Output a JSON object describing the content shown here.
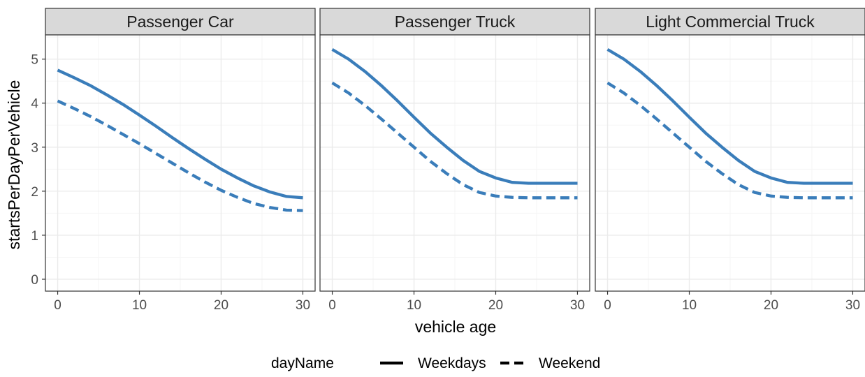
{
  "chart_data": {
    "type": "line",
    "facet_layout": "1 row x 3 columns",
    "panels": [
      {
        "title": "Passenger Car",
        "series": [
          {
            "name": "Weekdays",
            "linetype": "solid",
            "x": [
              0,
              2,
              4,
              6,
              8,
              10,
              12,
              14,
              16,
              18,
              20,
              22,
              24,
              26,
              28,
              30
            ],
            "y": [
              4.75,
              4.58,
              4.4,
              4.19,
              3.97,
              3.73,
              3.48,
              3.22,
              2.97,
              2.73,
              2.5,
              2.3,
              2.12,
              1.98,
              1.88,
              1.85
            ]
          },
          {
            "name": "Weekend",
            "linetype": "dashed",
            "x": [
              0,
              2,
              4,
              6,
              8,
              10,
              12,
              14,
              16,
              18,
              20,
              22,
              24,
              26,
              28,
              30
            ],
            "y": [
              4.05,
              3.88,
              3.7,
              3.5,
              3.29,
              3.08,
              2.86,
              2.64,
              2.42,
              2.21,
              2.02,
              1.86,
              1.72,
              1.63,
              1.57,
              1.56
            ]
          }
        ]
      },
      {
        "title": "Passenger Truck",
        "series": [
          {
            "name": "Weekdays",
            "linetype": "solid",
            "x": [
              0,
              2,
              4,
              6,
              8,
              10,
              12,
              14,
              16,
              18,
              20,
              22,
              24,
              26,
              28,
              30
            ],
            "y": [
              5.22,
              5.0,
              4.72,
              4.4,
              4.05,
              3.68,
              3.32,
              3.0,
              2.7,
              2.45,
              2.3,
              2.2,
              2.18,
              2.18,
              2.18,
              2.18
            ]
          },
          {
            "name": "Weekend",
            "linetype": "dashed",
            "x": [
              0,
              2,
              4,
              6,
              8,
              10,
              12,
              14,
              16,
              18,
              20,
              22,
              24,
              26,
              28,
              30
            ],
            "y": [
              4.46,
              4.23,
              3.95,
              3.64,
              3.32,
              3.0,
              2.68,
              2.4,
              2.15,
              1.97,
              1.89,
              1.86,
              1.85,
              1.85,
              1.85,
              1.85
            ]
          }
        ]
      },
      {
        "title": "Light Commercial Truck",
        "series": [
          {
            "name": "Weekdays",
            "linetype": "solid",
            "x": [
              0,
              2,
              4,
              6,
              8,
              10,
              12,
              14,
              16,
              18,
              20,
              22,
              24,
              26,
              28,
              30
            ],
            "y": [
              5.22,
              5.0,
              4.72,
              4.4,
              4.05,
              3.68,
              3.32,
              3.0,
              2.7,
              2.45,
              2.3,
              2.2,
              2.18,
              2.18,
              2.18,
              2.18
            ]
          },
          {
            "name": "Weekend",
            "linetype": "dashed",
            "x": [
              0,
              2,
              4,
              6,
              8,
              10,
              12,
              14,
              16,
              18,
              20,
              22,
              24,
              26,
              28,
              30
            ],
            "y": [
              4.46,
              4.23,
              3.95,
              3.64,
              3.32,
              3.0,
              2.68,
              2.4,
              2.15,
              1.97,
              1.89,
              1.86,
              1.85,
              1.85,
              1.85,
              1.85
            ]
          }
        ]
      }
    ],
    "xlabel": "vehicle age",
    "ylabel": "startsPerDayPerVehicle",
    "xlim": [
      -1.5,
      31.5
    ],
    "ylim": [
      -0.27,
      5.55
    ],
    "x_ticks": [
      0,
      10,
      20,
      30
    ],
    "y_ticks": [
      0,
      1,
      2,
      3,
      4,
      5
    ],
    "grid": true,
    "legend": {
      "title": "dayName",
      "position": "bottom",
      "entries": [
        {
          "label": "Weekdays",
          "linetype": "solid"
        },
        {
          "label": "Weekend",
          "linetype": "dashed"
        }
      ]
    },
    "colors": {
      "line": "#3a7dba",
      "strip_fill": "#d9d9d9",
      "panel_border": "#333333",
      "grid_major": "#ebebeb",
      "grid_minor": "#f5f5f5"
    }
  }
}
